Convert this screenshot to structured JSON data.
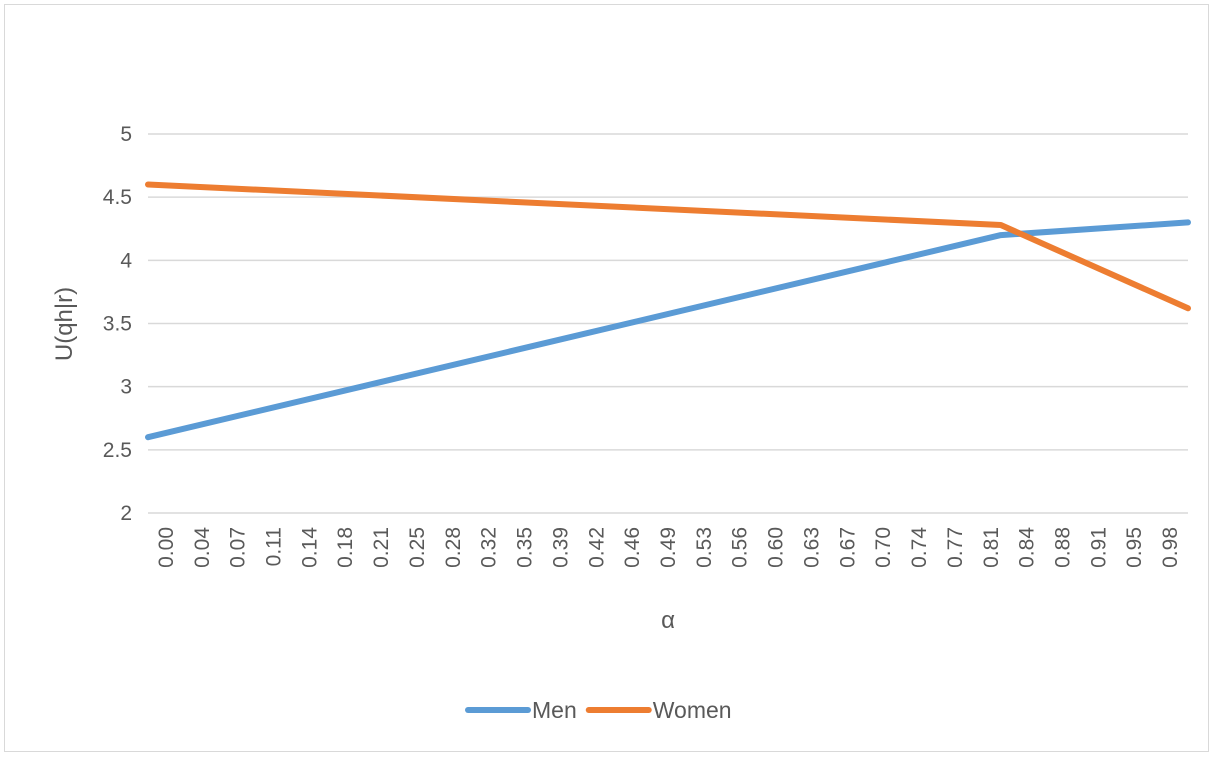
{
  "chart_data": {
    "type": "line",
    "title": "",
    "xlabel": "α",
    "ylabel": "U(qh|r)",
    "ylim": [
      2,
      5
    ],
    "ymajor": 0.5,
    "grid": "horizontal",
    "legend_position": "bottom",
    "x_tick_labels": [
      "0.00",
      "0.04",
      "0.07",
      "0.11",
      "0.14",
      "0.18",
      "0.21",
      "0.25",
      "0.28",
      "0.32",
      "0.35",
      "0.39",
      "0.42",
      "0.46",
      "0.49",
      "0.53",
      "0.56",
      "0.60",
      "0.63",
      "0.67",
      "0.70",
      "0.74",
      "0.77",
      "0.81",
      "0.84",
      "0.88",
      "0.91",
      "0.95",
      "0.98"
    ],
    "y_tick_labels": [
      "2",
      "2.5",
      "3",
      "3.5",
      "4",
      "4.5",
      "5"
    ],
    "x_range": [
      0,
      1
    ],
    "series": [
      {
        "name": "Men",
        "color": "#5B9BD5",
        "points": [
          [
            0.0,
            2.6
          ],
          [
            0.82,
            4.2
          ],
          [
            1.0,
            4.3
          ]
        ]
      },
      {
        "name": "Women",
        "color": "#ED7D31",
        "points": [
          [
            0.0,
            4.6
          ],
          [
            0.82,
            4.28
          ],
          [
            1.0,
            3.62
          ]
        ]
      }
    ]
  }
}
